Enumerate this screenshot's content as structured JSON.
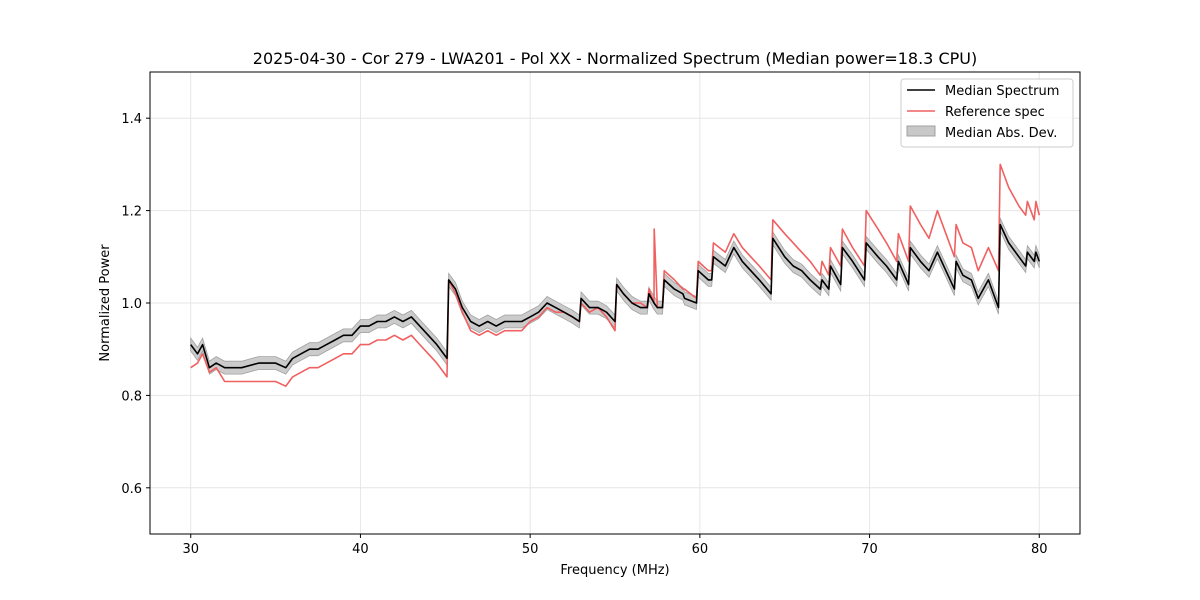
{
  "chart_data": {
    "type": "line",
    "title": "2025-04-30 - Cor 279 - LWA201 - Pol XX - Normalized Spectrum (Median power=18.3 CPU)",
    "xlabel": "Frequency (MHz)",
    "ylabel": "Normalized Power",
    "xlim": [
      27.6,
      82.4
    ],
    "ylim": [
      0.5,
      1.5
    ],
    "xticks": [
      30,
      40,
      50,
      60,
      70,
      80
    ],
    "xtick_labels": [
      "30",
      "40",
      "50",
      "60",
      "70",
      "80"
    ],
    "yticks": [
      0.6,
      0.8,
      1.0,
      1.2,
      1.4
    ],
    "ytick_labels": [
      "0.6",
      "0.8",
      "1.0",
      "1.2",
      "1.4"
    ],
    "grid": true,
    "legend_position": "top-right",
    "legend": [
      "Median Spectrum",
      "Reference spec",
      "Median Abs. Dev."
    ],
    "colors": {
      "median": "#000000",
      "reference": "#f06060",
      "mad_fill": "#c8c8c8",
      "mad_edge": "#a0a0a0"
    },
    "mad_width": 0.014,
    "series": [
      {
        "name": "Median Spectrum",
        "x": [
          30.0,
          30.4,
          30.7,
          31.1,
          31.5,
          32.0,
          33.0,
          34.0,
          35.0,
          35.6,
          36.0,
          36.5,
          37.0,
          37.5,
          38.0,
          38.5,
          39.0,
          39.5,
          40.0,
          40.5,
          41.0,
          41.5,
          42.0,
          42.5,
          43.0,
          43.5,
          44.0,
          44.5,
          45.1,
          45.2,
          45.6,
          46.0,
          46.5,
          47.0,
          47.5,
          48.0,
          48.5,
          49.0,
          49.5,
          50.0,
          50.5,
          51.0,
          51.5,
          52.0,
          52.5,
          52.9,
          53.0,
          53.5,
          54.0,
          54.5,
          55.0,
          55.1,
          55.5,
          56.0,
          56.5,
          56.9,
          57.0,
          57.3,
          57.5,
          57.8,
          57.9,
          58.5,
          59.0,
          59.1,
          59.8,
          59.9,
          60.5,
          60.7,
          60.8,
          61.5,
          62.0,
          62.5,
          63.0,
          63.5,
          64.2,
          64.3,
          65.0,
          65.5,
          66.0,
          66.5,
          67.1,
          67.2,
          67.6,
          67.7,
          68.3,
          68.4,
          69.0,
          69.7,
          69.8,
          70.5,
          71.0,
          71.6,
          71.7,
          72.3,
          72.4,
          73.0,
          73.5,
          74.0,
          74.5,
          75.0,
          75.1,
          75.5,
          76.0,
          76.4,
          77.0,
          77.6,
          77.7,
          78.2,
          78.8,
          79.2,
          79.3,
          79.7,
          79.8,
          80.0
        ],
        "y": [
          0.91,
          0.89,
          0.91,
          0.86,
          0.87,
          0.86,
          0.86,
          0.87,
          0.87,
          0.86,
          0.88,
          0.89,
          0.9,
          0.9,
          0.91,
          0.92,
          0.93,
          0.93,
          0.95,
          0.95,
          0.96,
          0.96,
          0.97,
          0.96,
          0.97,
          0.95,
          0.93,
          0.91,
          0.88,
          1.05,
          1.03,
          0.99,
          0.96,
          0.95,
          0.96,
          0.95,
          0.96,
          0.96,
          0.96,
          0.97,
          0.98,
          1.0,
          0.99,
          0.98,
          0.97,
          0.96,
          1.01,
          0.99,
          0.99,
          0.98,
          0.96,
          1.04,
          1.02,
          1.0,
          0.99,
          0.99,
          1.02,
          1.0,
          0.99,
          0.99,
          1.05,
          1.03,
          1.02,
          1.01,
          1.0,
          1.07,
          1.05,
          1.05,
          1.1,
          1.08,
          1.12,
          1.09,
          1.07,
          1.05,
          1.02,
          1.14,
          1.1,
          1.08,
          1.07,
          1.05,
          1.03,
          1.05,
          1.03,
          1.08,
          1.04,
          1.12,
          1.09,
          1.05,
          1.13,
          1.1,
          1.08,
          1.05,
          1.09,
          1.04,
          1.12,
          1.09,
          1.07,
          1.11,
          1.07,
          1.03,
          1.09,
          1.06,
          1.05,
          1.01,
          1.05,
          0.99,
          1.17,
          1.13,
          1.1,
          1.08,
          1.11,
          1.09,
          1.11,
          1.09
        ]
      },
      {
        "name": "Reference spec",
        "x": [
          30.0,
          30.4,
          30.7,
          31.1,
          31.5,
          32.0,
          33.0,
          34.0,
          35.0,
          35.6,
          36.0,
          36.5,
          37.0,
          37.5,
          38.0,
          38.5,
          39.0,
          39.5,
          40.0,
          40.5,
          41.0,
          41.5,
          42.0,
          42.5,
          43.0,
          43.5,
          44.0,
          44.5,
          45.1,
          45.2,
          45.6,
          46.0,
          46.5,
          47.0,
          47.5,
          48.0,
          48.5,
          49.0,
          49.5,
          50.0,
          50.5,
          51.0,
          51.5,
          52.0,
          52.5,
          52.9,
          53.0,
          53.5,
          54.0,
          54.5,
          55.0,
          55.1,
          55.5,
          56.0,
          56.5,
          56.9,
          57.0,
          57.3,
          57.31,
          57.5,
          57.8,
          57.9,
          58.5,
          59.0,
          59.1,
          59.8,
          59.9,
          60.5,
          60.7,
          60.8,
          61.5,
          62.0,
          62.5,
          63.0,
          63.5,
          64.2,
          64.3,
          65.0,
          65.5,
          66.0,
          66.5,
          67.1,
          67.2,
          67.6,
          67.7,
          68.3,
          68.4,
          69.0,
          69.7,
          69.8,
          70.5,
          71.0,
          71.6,
          71.7,
          72.3,
          72.4,
          73.0,
          73.5,
          74.0,
          74.5,
          75.0,
          75.1,
          75.5,
          76.0,
          76.4,
          77.0,
          77.6,
          77.7,
          78.2,
          78.8,
          79.2,
          79.3,
          79.7,
          79.8,
          80.0
        ],
        "y": [
          0.86,
          0.87,
          0.89,
          0.85,
          0.86,
          0.83,
          0.83,
          0.83,
          0.83,
          0.82,
          0.84,
          0.85,
          0.86,
          0.86,
          0.87,
          0.88,
          0.89,
          0.89,
          0.91,
          0.91,
          0.92,
          0.92,
          0.93,
          0.92,
          0.93,
          0.91,
          0.89,
          0.87,
          0.84,
          1.05,
          1.02,
          0.98,
          0.94,
          0.93,
          0.94,
          0.93,
          0.94,
          0.94,
          0.94,
          0.96,
          0.97,
          0.99,
          0.98,
          0.98,
          0.97,
          0.96,
          1.0,
          0.98,
          0.99,
          0.97,
          0.94,
          1.04,
          1.02,
          1.0,
          1.0,
          0.99,
          1.03,
          1.0,
          1.16,
          0.99,
          0.99,
          1.07,
          1.05,
          1.03,
          1.03,
          1.01,
          1.09,
          1.07,
          1.07,
          1.13,
          1.11,
          1.15,
          1.12,
          1.1,
          1.08,
          1.05,
          1.18,
          1.15,
          1.13,
          1.11,
          1.09,
          1.06,
          1.09,
          1.06,
          1.12,
          1.08,
          1.16,
          1.12,
          1.08,
          1.2,
          1.16,
          1.13,
          1.09,
          1.15,
          1.09,
          1.21,
          1.17,
          1.14,
          1.2,
          1.15,
          1.1,
          1.17,
          1.13,
          1.12,
          1.07,
          1.12,
          1.07,
          1.3,
          1.25,
          1.21,
          1.19,
          1.22,
          1.18,
          1.22,
          1.19
        ]
      }
    ]
  }
}
